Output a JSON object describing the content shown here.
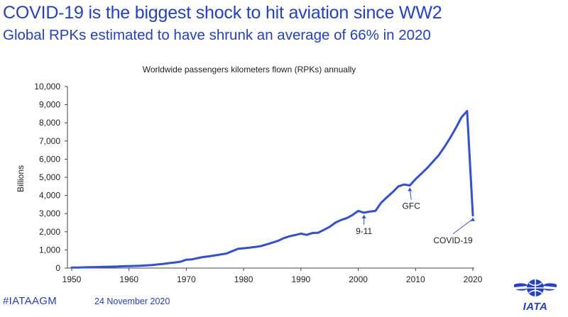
{
  "headline": "COVID-19 is the biggest shock to hit aviation since WW2",
  "subheadline": "Global RPKs estimated to have shrunk an average of 66% in 2020",
  "footer": {
    "hashtag": "#IATAAGM",
    "date": "24 November 2020",
    "logo_text": "IATA",
    "logo_icon": "iata-globe-icon"
  },
  "colors": {
    "accent": "#1f3fd6",
    "line": "#2f4fe0",
    "text": "#222222"
  },
  "chart_data": {
    "type": "line",
    "title": "Worldwide passengers kilometers flown (RPKs) annually",
    "ylabel": "Billions",
    "xlabel": "",
    "xlim": [
      1950,
      2020
    ],
    "ylim": [
      0,
      10000
    ],
    "x_ticks": [
      "1950",
      "1960",
      "1970",
      "1980",
      "1990",
      "2000",
      "2010",
      "2020"
    ],
    "y_ticks": [
      "0",
      "1,000",
      "2,000",
      "3,000",
      "4,000",
      "5,000",
      "6,000",
      "7,000",
      "8,000",
      "9,000",
      "10,000"
    ],
    "grid": false,
    "series": [
      {
        "x": [
          1950,
          1951,
          1952,
          1953,
          1954,
          1955,
          1956,
          1957,
          1958,
          1959,
          1960,
          1961,
          1962,
          1963,
          1964,
          1965,
          1966,
          1967,
          1968,
          1969,
          1970,
          1971,
          1972,
          1973,
          1974,
          1975,
          1976,
          1977,
          1978,
          1979,
          1980,
          1981,
          1982,
          1983,
          1984,
          1985,
          1986,
          1987,
          1988,
          1989,
          1990,
          1991,
          1992,
          1993,
          1994,
          1995,
          1996,
          1997,
          1998,
          1999,
          2000,
          2001,
          2002,
          2003,
          2004,
          2005,
          2006,
          2007,
          2008,
          2009,
          2010,
          2011,
          2012,
          2013,
          2014,
          2015,
          2016,
          2017,
          2018,
          2019,
          2020
        ],
        "y": [
          28,
          33,
          38,
          45,
          52,
          61,
          70,
          80,
          86,
          100,
          109,
          117,
          130,
          145,
          165,
          198,
          230,
          275,
          310,
          350,
          460,
          480,
          550,
          610,
          650,
          700,
          750,
          800,
          930,
          1060,
          1090,
          1120,
          1160,
          1210,
          1300,
          1400,
          1500,
          1650,
          1750,
          1820,
          1900,
          1830,
          1930,
          1950,
          2100,
          2270,
          2500,
          2650,
          2750,
          2920,
          3150,
          3050,
          3110,
          3150,
          3600,
          3900,
          4180,
          4500,
          4600,
          4550,
          4900,
          5200,
          5500,
          5850,
          6200,
          6650,
          7150,
          7700,
          8300,
          8650,
          2900
        ]
      }
    ],
    "annotations": [
      {
        "label": "9-11",
        "x": 2001,
        "y": 3050
      },
      {
        "label": "GFC",
        "x": 2009,
        "y": 4550
      },
      {
        "label": "COVID-19",
        "x": 2020,
        "y": 2900
      }
    ]
  }
}
